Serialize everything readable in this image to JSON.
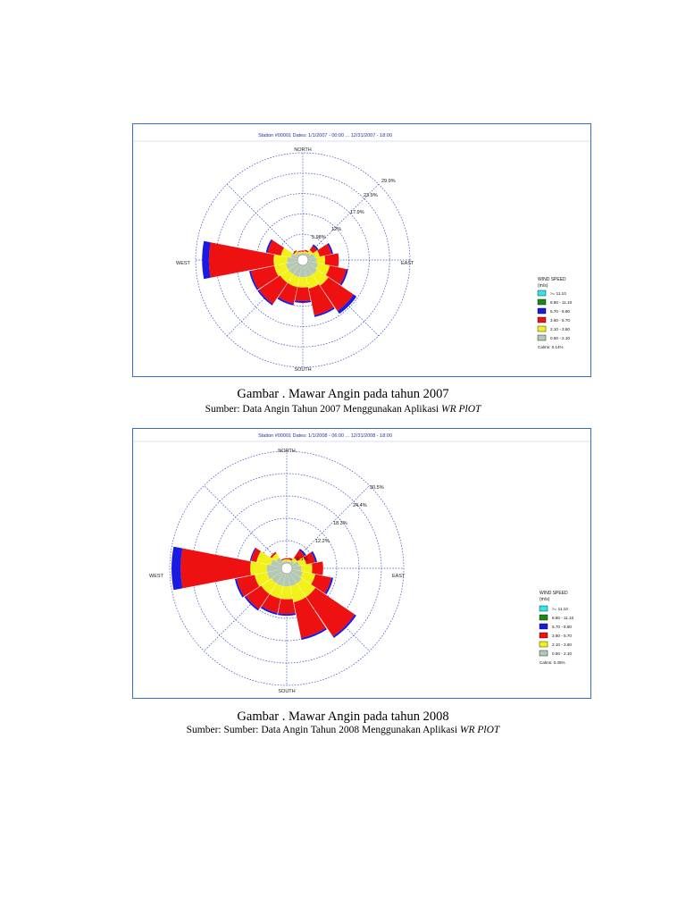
{
  "legend_colors": [
    "#33e6e6",
    "#168c16",
    "#1a1ae0",
    "#ee1111",
    "#f2f21a",
    "#b4c8b4"
  ],
  "figures": [
    {
      "header": "Station #00001 Dates: 1/1/2007 - 00:00 ... 12/31/2007 - 18:00",
      "directions": {
        "north": "NORTH",
        "south": "SOUTH",
        "east": "EAST",
        "west": "WEST"
      },
      "ring_labels": [
        "5.98%",
        "12%",
        "17.9%",
        "23.9%",
        "29.9%"
      ],
      "legend": {
        "title": "WIND SPEED",
        "unit": "(m/s)",
        "bins": [
          ">= 11.10",
          "8.80 - 11.10",
          "5.70 - 8.80",
          "3.60 - 5.70",
          "2.10 - 3.60",
          "0.50 - 2.10"
        ],
        "calms": "Calms: 0.14%"
      },
      "caption": "Gambar . Mawar Angin pada tahun 2007",
      "source_prefix": "Sumber: Data Angin Tahun 2007 Menggunakan Aplikasi",
      "source_app": "WR PlOT",
      "chart_data": {
        "type": "wind-rose",
        "ring_max_percent": 29.9,
        "sector_order": [
          "N",
          "NNE",
          "NE",
          "ENE",
          "E",
          "ESE",
          "SE",
          "SSE",
          "S",
          "SSW",
          "SW",
          "WSW",
          "W",
          "WNW",
          "NW",
          "NNW"
        ],
        "series": [
          {
            "name": "0.50 - 2.10",
            "values": [
              0.5,
              0.6,
              1.0,
              2.0,
              2.5,
              3.0,
              3.5,
              3.5,
              3.5,
              3.5,
              3.5,
              3.5,
              3.0,
              2.0,
              1.0,
              0.5
            ]
          },
          {
            "name": "2.10 - 3.60",
            "values": [
              0.4,
              0.5,
              1.0,
              1.5,
              2.5,
              3.5,
              4.0,
              3.5,
              3.0,
              3.0,
              3.0,
              3.5,
              4.0,
              3.0,
              0.5,
              0.5
            ]
          },
          {
            "name": "3.60 - 5.70",
            "values": [
              0.3,
              0.4,
              1.5,
              3.5,
              4.0,
              5.0,
              9.0,
              8.0,
              4.0,
              5.0,
              7.5,
              7.0,
              19.0,
              4.0,
              0.4,
              0.3
            ]
          },
          {
            "name": "5.70 - 8.80",
            "values": [
              0,
              0,
              0.5,
              0.5,
              0,
              0.5,
              1.0,
              0.5,
              0.5,
              0.5,
              0.5,
              0.5,
              2.0,
              0.5,
              0,
              0
            ]
          }
        ]
      }
    },
    {
      "header": "Station #00001 Dates: 1/1/2008 - 06:00 ... 12/31/2008 - 18:00",
      "directions": {
        "north": "NORTH",
        "south": "SOUTH",
        "east": "EAST",
        "west": "WEST"
      },
      "ring_labels": [
        "6.1%",
        "12.2%",
        "18.3%",
        "24.4%",
        "30.5%"
      ],
      "legend": {
        "title": "WIND SPEED",
        "unit": "(m/s)",
        "bins": [
          ">= 11.10",
          "8.80 - 11.10",
          "5.70 - 8.80",
          "3.60 - 5.70",
          "2.10 - 3.60",
          "0.50 - 2.10"
        ],
        "calms": "Calms: 0.45%"
      },
      "caption": "Gambar . Mawar Angin pada tahun 2008",
      "source_prefix": "Sumber: Sumber: Data Angin Tahun 2008 Menggunakan Aplikasi",
      "source_app": "WR PlOT",
      "chart_data": {
        "type": "wind-rose",
        "ring_max_percent": 30.5,
        "sector_order": [
          "N",
          "NNE",
          "NE",
          "ENE",
          "E",
          "ESE",
          "SE",
          "SSE",
          "S",
          "SSW",
          "SW",
          "WSW",
          "W",
          "WNW",
          "NW",
          "NNW"
        ],
        "series": [
          {
            "name": "0.50 - 2.10",
            "values": [
              0.5,
              0.5,
              1.0,
              2.0,
              2.5,
              3.0,
              3.5,
              3.5,
              3.5,
              3.5,
              3.5,
              4.0,
              4.0,
              3.0,
              2.0,
              0.5
            ]
          },
          {
            "name": "2.10 - 3.60",
            "values": [
              0.5,
              0.5,
              1.0,
              2.0,
              3.0,
              3.5,
              4.5,
              4.5,
              3.5,
              3.5,
              3.5,
              3.5,
              4.5,
              4.0,
              1.5,
              0.5
            ]
          },
          {
            "name": "3.60 - 5.70",
            "values": [
              0.3,
              0.5,
              2.5,
              2.5,
              3.0,
              4.5,
              13.0,
              10.0,
              4.0,
              4.0,
              5.0,
              5.0,
              19.0,
              1.5,
              0.5,
              0.3
            ]
          },
          {
            "name": "5.70 - 8.80",
            "values": [
              0,
              0,
              0.5,
              0.5,
              0,
              0.5,
              0.5,
              0.5,
              0.5,
              0.5,
              0.5,
              0.5,
              2.5,
              0.3,
              0,
              0
            ]
          }
        ]
      }
    }
  ]
}
